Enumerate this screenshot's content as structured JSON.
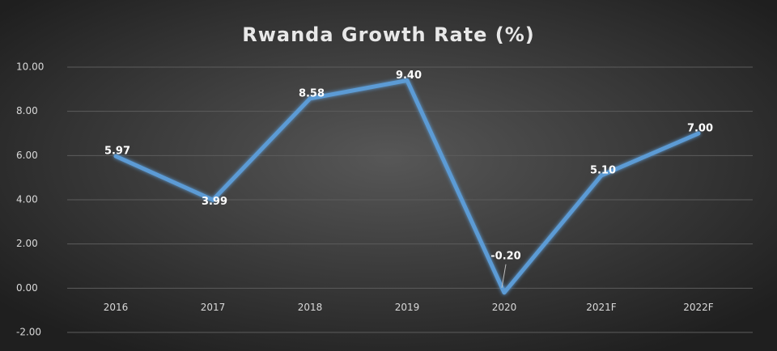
{
  "chart_data": {
    "type": "line",
    "title": "Rwanda Growth Rate (%)",
    "categories": [
      "2016",
      "2017",
      "2018",
      "2019",
      "2020",
      "2021F",
      "2022F"
    ],
    "series": [
      {
        "name": "Growth Rate",
        "color": "#5b9bd5",
        "values": [
          5.97,
          3.99,
          8.58,
          9.4,
          -0.2,
          5.1,
          7
        ],
        "value_labels": [
          "5.97",
          "3.99",
          "8.58",
          "9.40",
          "-0.20",
          "5.10",
          "7.00"
        ]
      }
    ],
    "ylim": [
      -2,
      10
    ],
    "yticks": [
      {
        "value": -2,
        "label": "-2.00"
      },
      {
        "value": 0,
        "label": "0.00"
      },
      {
        "value": 2,
        "label": "2.00"
      },
      {
        "value": 4,
        "label": "4.00"
      },
      {
        "value": 6,
        "label": "6.00"
      },
      {
        "value": 8,
        "label": "8.00"
      },
      {
        "value": 10,
        "label": "10.00"
      }
    ],
    "grid": true
  }
}
